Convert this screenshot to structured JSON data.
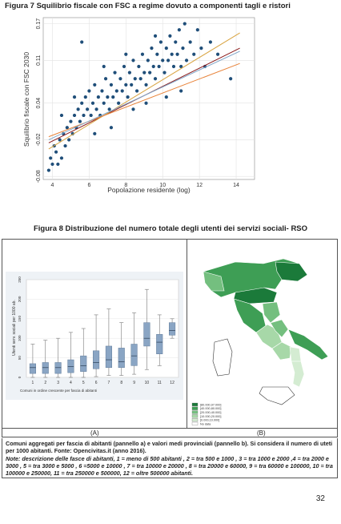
{
  "figure7": {
    "title": "Figura 7 Squilibrio fiscale con FSC a regime dovuto a componenti tagli e ristori",
    "chart_data": {
      "type": "scatter",
      "xlabel": "Popolazione residente (log)",
      "ylabel": "Squilibrio fiscale con FSC 2030",
      "xlim": [
        3.5,
        15
      ],
      "ylim": [
        -0.085,
        0.18
      ],
      "xticks": [
        "4",
        "6",
        "8",
        "10",
        "12",
        "14"
      ],
      "yticks": [
        "-0.08",
        "-0.02",
        "0.04",
        "0.11",
        "0.17"
      ],
      "grid": true,
      "point_color": "#1f4e79",
      "fit_lines": [
        {
          "color": "#8b1a1a",
          "points": [
            [
              3.8,
              -0.025
            ],
            [
              14.2,
              0.13
            ]
          ]
        },
        {
          "color": "#d9a441",
          "points": [
            [
              3.8,
              -0.035
            ],
            [
              14.2,
              0.155
            ]
          ]
        },
        {
          "color": "#e8833a",
          "points": [
            [
              3.8,
              -0.015
            ],
            [
              14.2,
              0.105
            ]
          ]
        },
        {
          "color": "#7fa6c9",
          "points": [
            [
              3.8,
              -0.02
            ],
            [
              14.2,
              0.125
            ]
          ]
        }
      ],
      "series": [
        {
          "points": [
            [
              3.8,
              -0.07
            ],
            [
              3.9,
              -0.05
            ],
            [
              4.0,
              -0.06
            ],
            [
              4.1,
              -0.03
            ],
            [
              4.2,
              -0.04
            ],
            [
              4.3,
              -0.06
            ],
            [
              4.4,
              -0.02
            ],
            [
              4.5,
              -0.05
            ],
            [
              4.6,
              -0.01
            ],
            [
              4.7,
              -0.03
            ],
            [
              4.8,
              0.0
            ],
            [
              4.9,
              -0.02
            ],
            [
              5.0,
              0.01
            ],
            [
              5.1,
              -0.01
            ],
            [
              5.2,
              0.02
            ],
            [
              5.3,
              0.0
            ],
            [
              5.4,
              0.03
            ],
            [
              5.5,
              0.01
            ],
            [
              5.6,
              0.04
            ],
            [
              5.7,
              0.02
            ],
            [
              5.8,
              0.05
            ],
            [
              5.9,
              0.03
            ],
            [
              6.0,
              0.06
            ],
            [
              6.1,
              0.02
            ],
            [
              6.2,
              0.04
            ],
            [
              6.3,
              0.07
            ],
            [
              6.4,
              0.03
            ],
            [
              6.5,
              0.05
            ],
            [
              6.6,
              0.02
            ],
            [
              6.7,
              0.06
            ],
            [
              6.8,
              0.04
            ],
            [
              6.9,
              0.08
            ],
            [
              7.0,
              0.05
            ],
            [
              7.1,
              0.03
            ],
            [
              7.2,
              0.07
            ],
            [
              7.3,
              0.05
            ],
            [
              7.4,
              0.09
            ],
            [
              7.5,
              0.06
            ],
            [
              7.6,
              0.04
            ],
            [
              7.7,
              0.08
            ],
            [
              7.8,
              0.06
            ],
            [
              7.9,
              0.1
            ],
            [
              8.0,
              0.07
            ],
            [
              8.1,
              0.05
            ],
            [
              8.2,
              0.09
            ],
            [
              8.3,
              0.07
            ],
            [
              8.4,
              0.11
            ],
            [
              8.5,
              0.08
            ],
            [
              8.6,
              0.06
            ],
            [
              8.7,
              0.1
            ],
            [
              8.8,
              0.08
            ],
            [
              8.9,
              0.12
            ],
            [
              9.0,
              0.09
            ],
            [
              9.1,
              0.07
            ],
            [
              9.2,
              0.11
            ],
            [
              9.3,
              0.09
            ],
            [
              9.4,
              0.13
            ],
            [
              9.5,
              0.1
            ],
            [
              9.6,
              0.08
            ],
            [
              9.7,
              0.12
            ],
            [
              9.8,
              0.1
            ],
            [
              9.9,
              0.14
            ],
            [
              10.0,
              0.11
            ],
            [
              10.1,
              0.09
            ],
            [
              10.2,
              0.13
            ],
            [
              10.3,
              0.11
            ],
            [
              10.4,
              0.15
            ],
            [
              10.5,
              0.12
            ],
            [
              10.6,
              0.1
            ],
            [
              10.7,
              0.14
            ],
            [
              10.8,
              0.12
            ],
            [
              10.9,
              0.16
            ],
            [
              11.0,
              0.1
            ],
            [
              11.1,
              0.13
            ],
            [
              11.2,
              0.17
            ],
            [
              11.3,
              0.11
            ],
            [
              11.5,
              0.14
            ],
            [
              11.7,
              0.12
            ],
            [
              11.9,
              0.16
            ],
            [
              12.1,
              0.13
            ],
            [
              12.3,
              0.1
            ],
            [
              12.6,
              0.14
            ],
            [
              13.0,
              0.12
            ],
            [
              13.7,
              0.08
            ],
            [
              5.6,
              0.14
            ],
            [
              4.5,
              0.02
            ],
            [
              6.3,
              -0.01
            ],
            [
              7.2,
              0.0
            ],
            [
              8.4,
              0.03
            ],
            [
              9.1,
              0.04
            ],
            [
              10.2,
              0.05
            ],
            [
              11.0,
              0.06
            ],
            [
              5.2,
              0.05
            ],
            [
              6.8,
              0.1
            ],
            [
              8.0,
              0.12
            ],
            [
              9.6,
              0.15
            ]
          ]
        }
      ]
    }
  },
  "figure8": {
    "title": "Figura 8 Distribuzione del numero totale degli utenti dei servizi sociali- RSO",
    "panel_a": {
      "chart_data": {
        "type": "boxplot",
        "ylabel": "Utenti serv. sociali per 1000 ab.",
        "xlabel": "Comuni in ordine crescente per fascia di abitanti",
        "ylim": [
          0,
          250
        ],
        "yticks": [
          "0",
          "50",
          "100",
          "150",
          "200",
          "250"
        ],
        "categories": [
          "1",
          "2",
          "3",
          "4",
          "5",
          "6",
          "7",
          "8",
          "9",
          "10",
          "11",
          "12"
        ],
        "box_color": "#8aa5c4",
        "boxes": [
          {
            "min": 0,
            "q1": 10,
            "median": 25,
            "q3": 35,
            "max": 85
          },
          {
            "min": 0,
            "q1": 10,
            "median": 25,
            "q3": 38,
            "max": 95
          },
          {
            "min": 0,
            "q1": 10,
            "median": 25,
            "q3": 38,
            "max": 100
          },
          {
            "min": 0,
            "q1": 12,
            "median": 28,
            "q3": 45,
            "max": 115
          },
          {
            "min": 0,
            "q1": 15,
            "median": 30,
            "q3": 55,
            "max": 125
          },
          {
            "min": 2,
            "q1": 22,
            "median": 38,
            "q3": 68,
            "max": 160
          },
          {
            "min": 5,
            "q1": 25,
            "median": 45,
            "q3": 80,
            "max": 175
          },
          {
            "min": 5,
            "q1": 25,
            "median": 40,
            "q3": 75,
            "max": 140
          },
          {
            "min": 8,
            "q1": 30,
            "median": 55,
            "q3": 85,
            "max": 165
          },
          {
            "min": 20,
            "q1": 80,
            "median": 100,
            "q3": 140,
            "max": 225
          },
          {
            "min": 30,
            "q1": 60,
            "median": 90,
            "q3": 110,
            "max": 160
          },
          {
            "min": 100,
            "q1": 108,
            "median": 120,
            "q3": 140,
            "max": 150
          }
        ]
      }
    },
    "panel_b": {
      "legend": [
        {
          "label": "[80.000,97.000]",
          "color": "#1b7a3a"
        },
        {
          "label": "[40.000,80.000]",
          "color": "#3e9e55"
        },
        {
          "label": "[20.000,40.000]",
          "color": "#74bf7f"
        },
        {
          "label": "[10.000,20.000]",
          "color": "#a7d8a8"
        },
        {
          "label": "[0.000,10.000]",
          "color": "#d4ecd2"
        },
        {
          "label": "No data",
          "color": "#ffffff"
        }
      ]
    },
    "label_a": "(A)",
    "label_b": "(B)"
  },
  "caption": {
    "main": "Comuni aggregati per fascia di abitanti (pannello a) e valori medi provinciali (pannello b). Si considera il numero di uteti per 1000 abitanti. Fonte: Opencivitas.it (anno 2016).",
    "note": "Note: descrizione delle fasce di abitanti, 1 = meno di 500 abitanti , 2 = tra 500 e 1000 , 3 = tra 1000 e 2000 ,4 = tra 2000 e 3000 , 5 = tra 3000 e 5000 , 6 =5000 e 10000 , 7 = tra 10000 e 20000 , 8 = tra 20000 e 60000, 9 = tra 60000 e 100000, 10 = tra 100000 e 250000, 11 = tra 250000 e 500000, 12 = oltre 500000 abitanti."
  },
  "page_number": "32"
}
